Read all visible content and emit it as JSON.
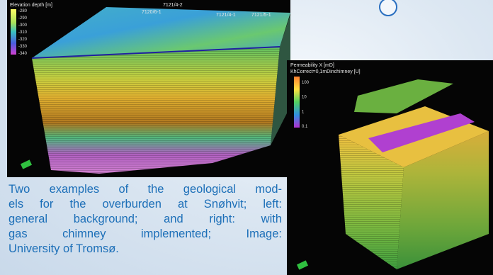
{
  "left_image": {
    "colorbar_title": "Elevation depth [m]",
    "colorbar_labels": [
      "-280",
      "-290",
      "-300",
      "-310",
      "-320",
      "-330",
      "-340"
    ],
    "well_labels": [
      "7121/4-2",
      "7120/6-1",
      "7121/4-1",
      "7121/5-1"
    ]
  },
  "right_image": {
    "colorbar_title": "Permeability X [mD]",
    "subtitle": "KhCorrect=0,1mDinchimney [U]",
    "colorbar_labels": [
      "100",
      "10",
      "1",
      "0.1"
    ]
  },
  "caption": {
    "lines": [
      "Two examples of the geological mod-",
      "els for the overburden at Snøhvit; left:",
      "general background; and right: with",
      "gas chimney implemented; Image:",
      "University of Tromsø."
    ]
  }
}
